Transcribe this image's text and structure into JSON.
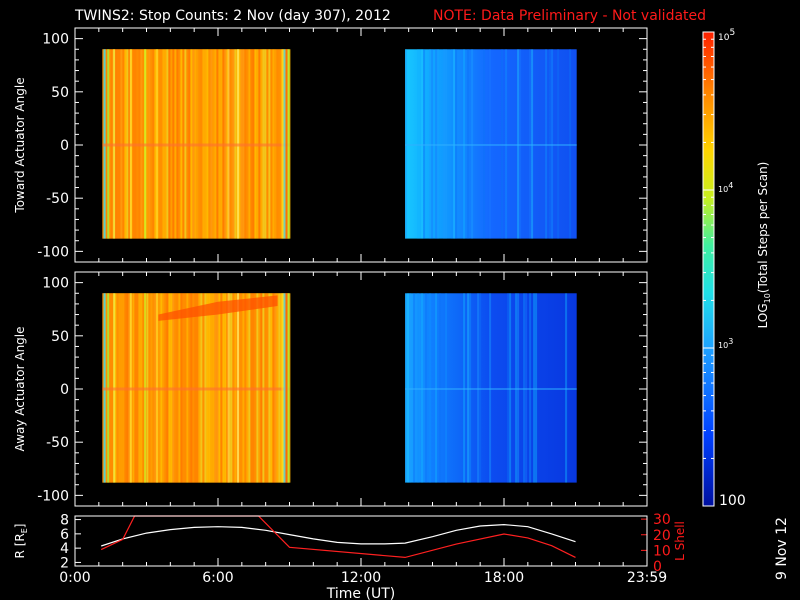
{
  "chart_data": [
    {
      "type": "heatmap",
      "title": "TWINS2: Stop Counts:  2 Nov (day 307), 2012",
      "note": "NOTE: Data Preliminary - Not validated",
      "ylabel": "Toward Actuator Angle",
      "ylim": [
        -110,
        110
      ],
      "yticks": [
        100,
        50,
        0,
        -50,
        -100
      ],
      "xlim_hours": [
        0,
        24
      ],
      "angle_range": [
        -88,
        90
      ],
      "blocks": [
        {
          "start_hour": 1.15,
          "end_hour": 9.0,
          "level": "high (~10^4.5)"
        },
        {
          "start_hour": 13.85,
          "end_hour": 21.05,
          "level": "low (~10^2.5-10^3)"
        }
      ]
    },
    {
      "type": "heatmap",
      "ylabel": "Away Actuator Angle",
      "ylim": [
        -110,
        110
      ],
      "yticks": [
        100,
        50,
        0,
        -50,
        -100
      ],
      "xlim_hours": [
        0,
        24
      ],
      "angle_range": [
        -88,
        90
      ],
      "blocks": [
        {
          "start_hour": 1.15,
          "end_hour": 9.0,
          "level": "high (~10^4.5)"
        },
        {
          "start_hour": 13.85,
          "end_hour": 21.05,
          "level": "low (~10^2.5)"
        }
      ]
    },
    {
      "type": "line",
      "ylabel_left": "R [R",
      "ylabel_left_sub": "E",
      "ylabel_left_end": "]",
      "ylabel_right": "L Shell",
      "ylim_left": [
        1.5,
        8.5
      ],
      "ylim_right": [
        0,
        32
      ],
      "yticks_left": [
        "8",
        "6",
        "4",
        "2"
      ],
      "yticks_right": [
        "30",
        "20",
        "10",
        "0"
      ],
      "xlabel": "Time (UT)",
      "xtick_labels": [
        "0:00",
        "6:00",
        "12:00",
        "18:00",
        "23:59"
      ],
      "series": [
        {
          "axis": "left",
          "color": "#ffffff",
          "x": [
            1.1,
            2.0,
            3.0,
            4.0,
            5.0,
            6.0,
            7.0,
            8.0,
            9.0,
            10.0,
            11.0,
            12.0,
            13.0,
            13.85,
            15.0,
            16.0,
            17.0,
            18.0,
            19.0,
            20.0,
            21.0
          ],
          "y": [
            4.3,
            5.3,
            6.1,
            6.6,
            6.9,
            7.0,
            6.9,
            6.5,
            5.9,
            5.3,
            4.8,
            4.6,
            4.6,
            4.7,
            5.6,
            6.5,
            7.1,
            7.3,
            7.0,
            6.0,
            4.9
          ]
        },
        {
          "axis": "right",
          "color": "#ff2020",
          "x": [
            1.1,
            2.0,
            2.5,
            7.7,
            9.0,
            13.85,
            16.0,
            18.0,
            19.0,
            20.0,
            21.0
          ],
          "y": [
            10.5,
            17,
            32,
            32,
            12,
            5.5,
            14,
            20.5,
            18,
            13,
            5.5
          ]
        }
      ]
    }
  ],
  "colorbar": {
    "title_pre": "LOG",
    "title_sub": "10",
    "title_post": "(Total Steps per Scan)",
    "label_top_base": "10",
    "label_top_exp": "5",
    "label_mid1_base": "10",
    "label_mid1_exp": "4",
    "label_mid2_base": "10",
    "label_mid2_exp": "3",
    "label_bottom": "100",
    "min_log": 2,
    "max_log": 5
  },
  "side_date": "9 Nov 12",
  "colors": {
    "high": "#ff8c00",
    "low": "#1e64ff",
    "line_red": "#ff2020",
    "line_white": "#ffffff"
  }
}
